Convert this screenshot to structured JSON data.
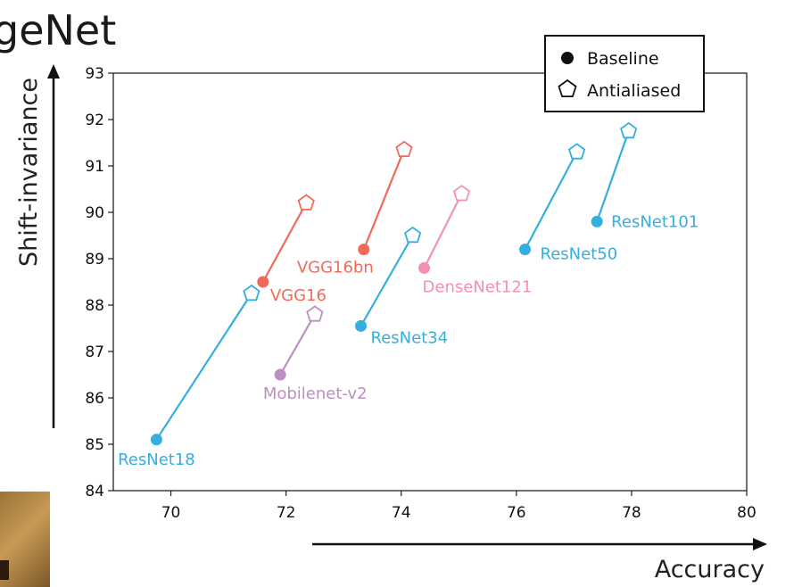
{
  "heading": "geNet",
  "colors": {
    "blue": "#35aee0",
    "red": "#f06a5a",
    "pink": "#f58fb4",
    "purple": "#bc8fc0"
  },
  "legend": {
    "baseline": "Baseline",
    "antialiased": "Antialiased"
  },
  "chart_data": {
    "type": "scatter",
    "xlabel": "Accuracy",
    "ylabel": "Shift-invariance",
    "xlim": [
      69,
      80
    ],
    "ylim": [
      84,
      93
    ],
    "xticks": [
      70,
      72,
      74,
      76,
      78,
      80
    ],
    "yticks": [
      84,
      85,
      86,
      87,
      88,
      89,
      90,
      91,
      92,
      93
    ],
    "grid": false,
    "legend_position": "top-right",
    "models": [
      {
        "name": "ResNet18",
        "color": "blue",
        "baseline": [
          69.75,
          85.1
        ],
        "antialiased": [
          71.4,
          88.25
        ]
      },
      {
        "name": "VGG16",
        "color": "red",
        "baseline": [
          71.6,
          88.5
        ],
        "antialiased": [
          72.35,
          90.2
        ]
      },
      {
        "name": "Mobilenet-v2",
        "color": "purple",
        "baseline": [
          71.9,
          86.5
        ],
        "antialiased": [
          72.5,
          87.8
        ]
      },
      {
        "name": "VGG16bn",
        "color": "red",
        "baseline": [
          73.35,
          89.2
        ],
        "antialiased": [
          74.05,
          91.35
        ]
      },
      {
        "name": "ResNet34",
        "color": "blue",
        "baseline": [
          73.3,
          87.55
        ],
        "antialiased": [
          74.2,
          89.5
        ]
      },
      {
        "name": "DenseNet121",
        "color": "pink",
        "baseline": [
          74.4,
          88.8
        ],
        "antialiased": [
          75.05,
          90.4
        ]
      },
      {
        "name": "ResNet50",
        "color": "blue",
        "baseline": [
          76.15,
          89.2
        ],
        "antialiased": [
          77.05,
          91.3
        ]
      },
      {
        "name": "ResNet101",
        "color": "blue",
        "baseline": [
          77.4,
          89.8
        ],
        "antialiased": [
          77.95,
          91.75
        ]
      }
    ]
  }
}
